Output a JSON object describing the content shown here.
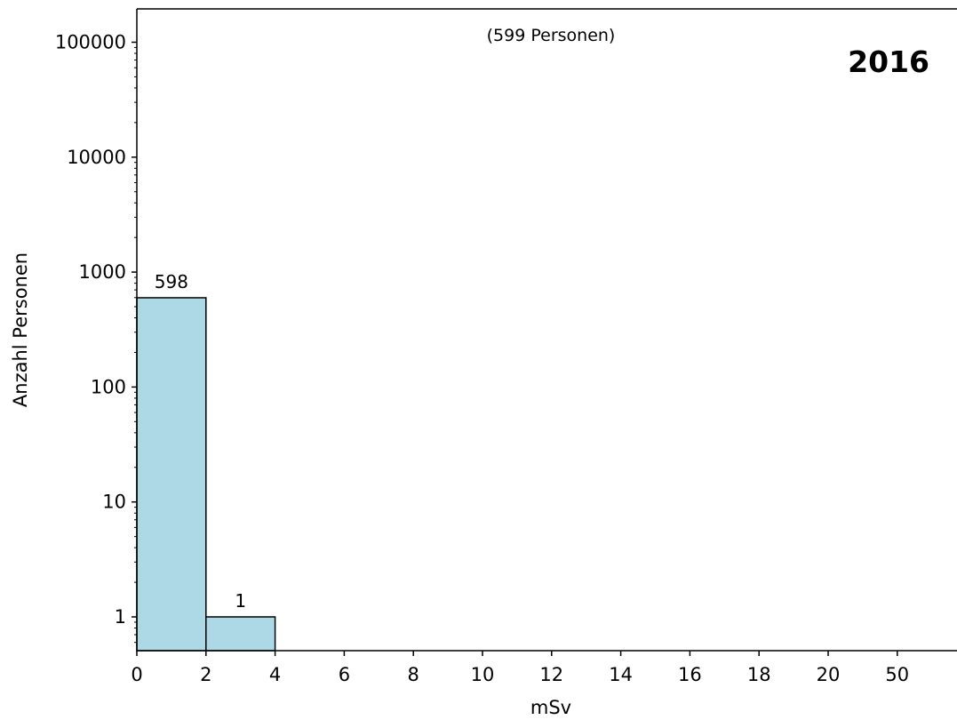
{
  "chart_data": {
    "type": "bar",
    "xlabel": "mSv",
    "ylabel": "Anzahl Personen",
    "subtitle": "(599 Personen)",
    "year_label": "2016",
    "y_scale": "log",
    "ylim": [
      0.5,
      200000
    ],
    "y_ticks": [
      1,
      10,
      100,
      1000,
      10000,
      100000
    ],
    "y_tick_labels": [
      "1",
      "10",
      "100",
      "1000",
      "10000",
      "100000"
    ],
    "x_tick_labels": [
      "0",
      "2",
      "4",
      "6",
      "8",
      "10",
      "12",
      "14",
      "16",
      "18",
      "20",
      "50"
    ],
    "bins": [
      {
        "from": "0",
        "to": "2",
        "value": 598,
        "label": "598"
      },
      {
        "from": "2",
        "to": "4",
        "value": 1,
        "label": "1"
      }
    ],
    "bar_color": "#add8e6",
    "grid": false
  }
}
